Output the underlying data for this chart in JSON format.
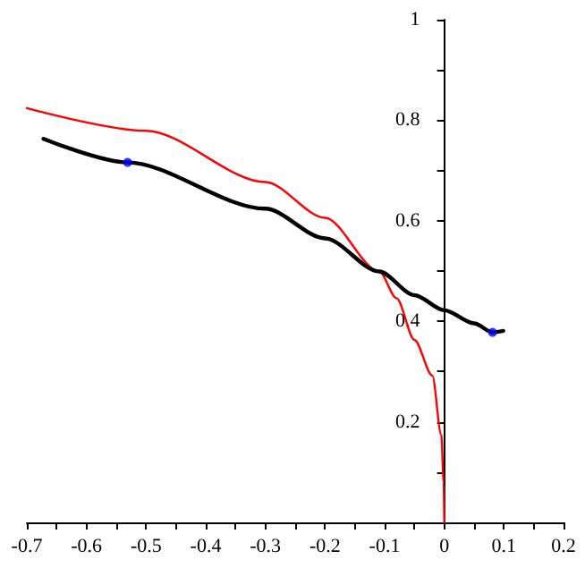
{
  "chart_data": {
    "type": "line",
    "xlim": [
      -0.7,
      0.2
    ],
    "ylim": [
      0,
      1
    ],
    "xticks": [
      -0.7,
      {
        "value": -0.65,
        "label": null
      },
      -0.6,
      {
        "value": -0.55,
        "label": null
      },
      -0.5,
      {
        "value": -0.45,
        "label": null
      },
      -0.4,
      {
        "value": -0.35,
        "label": null
      },
      -0.3,
      {
        "value": -0.25,
        "label": null
      },
      -0.2,
      {
        "value": -0.15,
        "label": null
      },
      -0.1,
      {
        "value": -0.05,
        "label": null
      },
      0,
      {
        "value": 0.05,
        "label": null
      },
      0.1,
      {
        "value": 0.15,
        "label": null
      },
      0.2
    ],
    "yticks": [
      {
        "value": 0.1,
        "label": null
      },
      0.2,
      {
        "value": 0.3,
        "label": null
      },
      0.4,
      {
        "value": 0.5,
        "label": null
      },
      0.6,
      {
        "value": 0.7,
        "label": null
      },
      0.8,
      {
        "value": 0.9,
        "label": null
      },
      1
    ],
    "series": [
      {
        "color": "#ff0000",
        "marker": "none",
        "line_style": "solid",
        "x": [
          -0.7,
          -0.5,
          -0.3,
          -0.2,
          -0.109,
          -0.08,
          -0.05,
          -0.02,
          -0.005,
          -0.001,
          0
        ],
        "values": [
          0.824,
          0.779,
          0.677,
          0.606,
          0.499,
          0.446,
          0.363,
          0.292,
          0.174,
          0.08,
          0
        ]
      },
      {
        "color": "#000000",
        "marker": "none",
        "line_style": "solid",
        "x": [
          -0.672,
          -0.531,
          -0.3,
          -0.2,
          -0.109,
          -0.05,
          0,
          0.05,
          0.081,
          0.099
        ],
        "values": [
          0.763,
          0.716,
          0.624,
          0.565,
          0.499,
          0.452,
          0.422,
          0.396,
          0.378,
          0.381
        ]
      },
      {
        "type": "scatter",
        "color": "#0000ff",
        "marker": "circle",
        "x": [
          -0.531,
          0.081
        ],
        "values": [
          0.716,
          0.378
        ]
      }
    ]
  }
}
